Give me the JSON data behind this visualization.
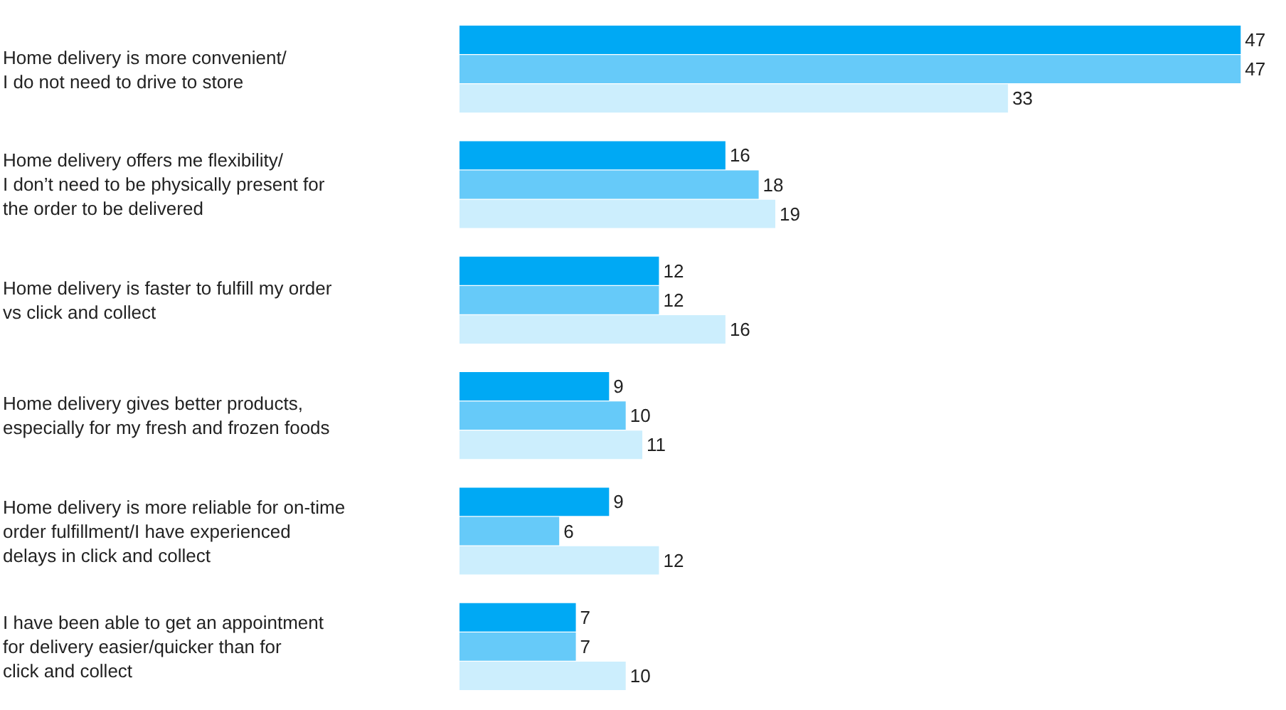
{
  "chart_data": {
    "type": "bar",
    "orientation": "horizontal",
    "data_labels": true,
    "legend": false,
    "categories": [
      "Home delivery is more convenient/\nI do not need to drive to store",
      "Home delivery offers me flexibility/\nI don’t need to be physically present for\nthe order to be delivered",
      "Home delivery is faster to fulfill my order\nvs click and collect",
      "Home delivery gives better products,\nespecially for my fresh and frozen foods",
      "Home delivery is more reliable for on-time\norder fulfillment/I have experienced\ndelays in click and collect",
      "I have been able to get an appointment\nfor delivery easier/quicker than for\nclick and collect"
    ],
    "series": [
      {
        "color": "#00a9f4",
        "values": [
          47,
          16,
          12,
          9,
          9,
          7
        ]
      },
      {
        "color": "#66caf9",
        "values": [
          47,
          18,
          12,
          10,
          6,
          7
        ]
      },
      {
        "color": "#cceefd",
        "values": [
          33,
          19,
          16,
          11,
          12,
          10
        ]
      }
    ]
  }
}
